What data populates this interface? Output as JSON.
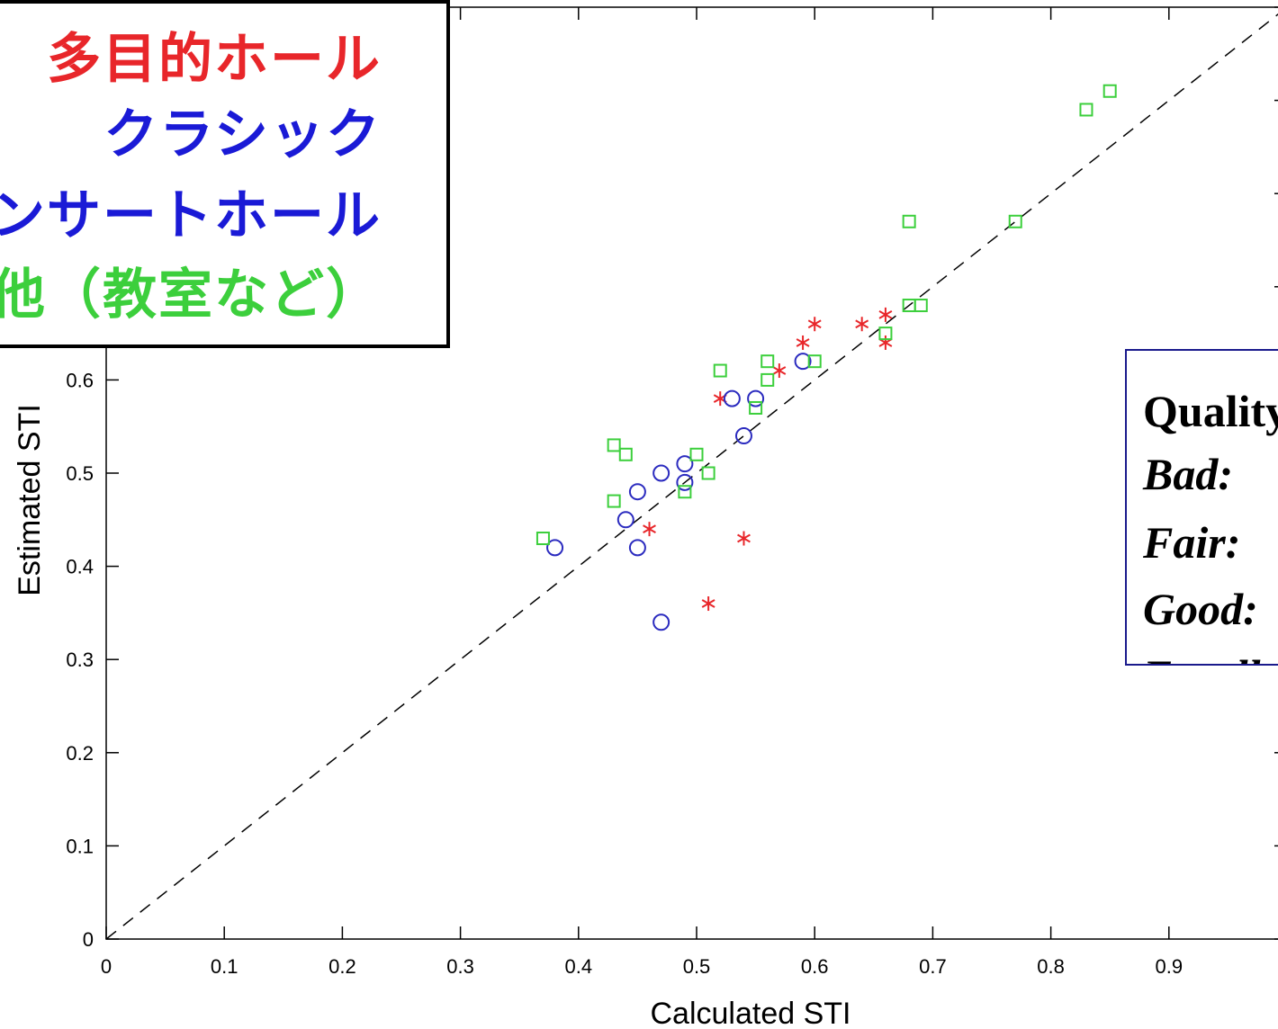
{
  "chart_data": {
    "type": "scatter",
    "xlabel": "Calculated STI",
    "ylabel": "Estimated STI",
    "xlim": [
      0,
      1
    ],
    "ylim": [
      0,
      1
    ],
    "x_ticks": [
      "0",
      "0.1",
      "0.2",
      "0.3",
      "0.4",
      "0.5",
      "0.6",
      "0.7",
      "0.8",
      "0.9"
    ],
    "y_ticks": [
      "0",
      "0.1",
      "0.2",
      "0.3",
      "0.4",
      "0.5",
      "0.6"
    ],
    "reference_line": "y = x (dashed)",
    "series": [
      {
        "marker": "asterisk",
        "color": "#e8262a",
        "points": [
          [
            0.46,
            0.44
          ],
          [
            0.51,
            0.36
          ],
          [
            0.52,
            0.58
          ],
          [
            0.54,
            0.43
          ],
          [
            0.57,
            0.61
          ],
          [
            0.59,
            0.64
          ],
          [
            0.6,
            0.66
          ],
          [
            0.64,
            0.66
          ],
          [
            0.66,
            0.64
          ],
          [
            0.66,
            0.67
          ]
        ]
      },
      {
        "marker": "circle",
        "color": "#2b2bbf",
        "points": [
          [
            0.38,
            0.42
          ],
          [
            0.44,
            0.45
          ],
          [
            0.45,
            0.42
          ],
          [
            0.45,
            0.48
          ],
          [
            0.47,
            0.34
          ],
          [
            0.47,
            0.5
          ],
          [
            0.49,
            0.49
          ],
          [
            0.49,
            0.51
          ],
          [
            0.53,
            0.58
          ],
          [
            0.54,
            0.54
          ],
          [
            0.55,
            0.58
          ],
          [
            0.59,
            0.62
          ]
        ]
      },
      {
        "marker": "square",
        "color": "#3ccf3c",
        "points": [
          [
            0.37,
            0.43
          ],
          [
            0.43,
            0.47
          ],
          [
            0.43,
            0.53
          ],
          [
            0.44,
            0.52
          ],
          [
            0.49,
            0.48
          ],
          [
            0.5,
            0.52
          ],
          [
            0.51,
            0.5
          ],
          [
            0.52,
            0.61
          ],
          [
            0.55,
            0.57
          ],
          [
            0.56,
            0.6
          ],
          [
            0.56,
            0.62
          ],
          [
            0.6,
            0.62
          ],
          [
            0.66,
            0.65
          ],
          [
            0.68,
            0.68
          ],
          [
            0.69,
            0.68
          ],
          [
            0.68,
            0.77
          ],
          [
            0.77,
            0.77
          ],
          [
            0.83,
            0.89
          ],
          [
            0.85,
            0.91
          ]
        ]
      }
    ]
  },
  "legend": {
    "items": [
      {
        "text": "多目的ホール",
        "color": "#e8262a"
      },
      {
        "text": "クラシック",
        "color": "#1a1ad6"
      },
      {
        "text": "コンサートホール",
        "color": "#1a1ad6"
      },
      {
        "text": "その他（教室など）",
        "color": "#3ccf3c"
      }
    ]
  },
  "quality": {
    "title": "Quality",
    "items": [
      "Bad: ",
      "Fair: ",
      "Good: ",
      "Excellent"
    ]
  }
}
